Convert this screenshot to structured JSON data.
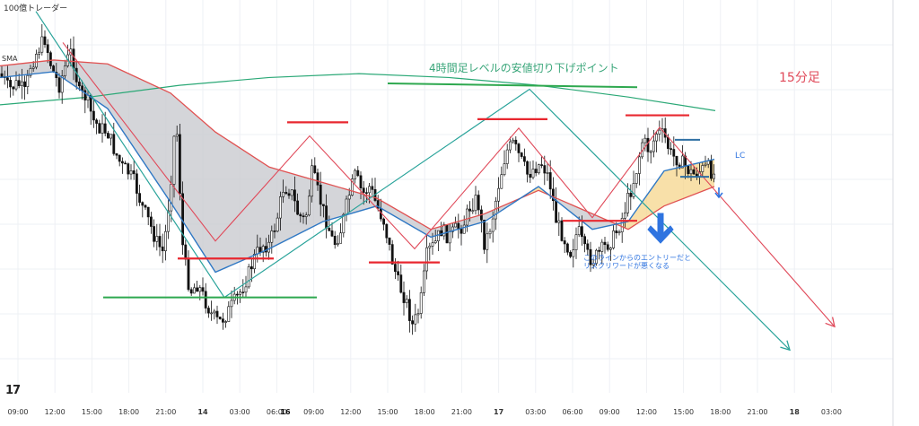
{
  "brand": "100億トレーダー",
  "small_tag": "SMA",
  "logo_text": "17",
  "annotations": {
    "level_note": "4時間足レベルの安値切り下げポイント",
    "timeframe": "15分足",
    "lc": "LC",
    "warning_line1": "このラインからのエントリーだと",
    "warning_line2": "リスクリワードが悪くなる"
  },
  "colors": {
    "background": "#ffffff",
    "grid": "#eef0f4",
    "bull_candle": "#ffffff",
    "bear_candle": "#111111",
    "ma_fast": "#2f78c4",
    "ma_slow": "#e05252",
    "ma_long": "#2aa876",
    "cloud_bear": "#c9cad0",
    "cloud_bull": "#f6d68c",
    "green_zigzag": "#29a39a",
    "red_zigzag": "#e04a5a",
    "red_level": "#e8272f",
    "green_level": "#2ea84f",
    "blue_level": "#2e6fa3",
    "arrow_blue": "#2f74e0",
    "text_green": "#3aa67a",
    "text_red": "#e04a5a",
    "text_blue": "#2f74e0"
  },
  "chart_data": {
    "type": "candlestick",
    "x_ticks": [
      "09:00",
      "12:00",
      "15:00",
      "18:00",
      "21:00",
      "14",
      "03:00",
      "06:00",
      "09:00",
      "12:00",
      "15:00",
      "18:00",
      "21:00",
      "17",
      "03:00",
      "06:00",
      "09:00",
      "12:00",
      "15:00",
      "18:00",
      "21:00",
      "18",
      "03:00"
    ],
    "bold_ticks": [
      "14",
      "17",
      "18"
    ],
    "extra_bold_tick": "16",
    "y_range": [
      1000,
      0
    ],
    "price_path": [
      [
        0,
        180
      ],
      [
        10,
        220
      ],
      [
        20,
        205
      ],
      [
        28,
        230
      ],
      [
        34,
        160
      ],
      [
        42,
        120
      ],
      [
        50,
        90
      ],
      [
        58,
        170
      ],
      [
        66,
        210
      ],
      [
        74,
        150
      ],
      [
        80,
        120
      ],
      [
        88,
        230
      ],
      [
        96,
        240
      ],
      [
        104,
        300
      ],
      [
        112,
        320
      ],
      [
        120,
        330
      ],
      [
        128,
        380
      ],
      [
        136,
        420
      ],
      [
        142,
        430
      ],
      [
        150,
        460
      ],
      [
        158,
        520
      ],
      [
        166,
        560
      ],
      [
        174,
        610
      ],
      [
        182,
        640
      ],
      [
        190,
        470
      ],
      [
        196,
        280
      ],
      [
        204,
        640
      ],
      [
        212,
        740
      ],
      [
        220,
        720
      ],
      [
        228,
        760
      ],
      [
        236,
        800
      ],
      [
        244,
        820
      ],
      [
        252,
        800
      ],
      [
        260,
        770
      ],
      [
        268,
        740
      ],
      [
        276,
        700
      ],
      [
        284,
        650
      ],
      [
        292,
        620
      ],
      [
        300,
        620
      ],
      [
        308,
        560
      ],
      [
        316,
        470
      ],
      [
        324,
        480
      ],
      [
        332,
        540
      ],
      [
        340,
        560
      ],
      [
        348,
        430
      ],
      [
        356,
        500
      ],
      [
        364,
        560
      ],
      [
        372,
        620
      ],
      [
        380,
        580
      ],
      [
        388,
        500
      ],
      [
        396,
        440
      ],
      [
        404,
        490
      ],
      [
        412,
        470
      ],
      [
        420,
        520
      ],
      [
        428,
        560
      ],
      [
        436,
        650
      ],
      [
        444,
        720
      ],
      [
        452,
        760
      ],
      [
        460,
        830
      ],
      [
        468,
        780
      ],
      [
        476,
        640
      ],
      [
        484,
        620
      ],
      [
        492,
        580
      ],
      [
        500,
        600
      ],
      [
        508,
        580
      ],
      [
        516,
        570
      ],
      [
        524,
        520
      ],
      [
        532,
        500
      ],
      [
        540,
        620
      ],
      [
        548,
        560
      ],
      [
        556,
        460
      ],
      [
        564,
        380
      ],
      [
        572,
        360
      ],
      [
        580,
        400
      ],
      [
        588,
        440
      ],
      [
        596,
        420
      ],
      [
        604,
        410
      ],
      [
        612,
        450
      ],
      [
        620,
        560
      ],
      [
        628,
        600
      ],
      [
        636,
        640
      ],
      [
        644,
        580
      ],
      [
        652,
        640
      ],
      [
        660,
        660
      ],
      [
        668,
        640
      ],
      [
        676,
        620
      ],
      [
        684,
        600
      ],
      [
        692,
        560
      ],
      [
        700,
        500
      ],
      [
        708,
        440
      ],
      [
        716,
        350
      ],
      [
        724,
        380
      ],
      [
        732,
        330
      ],
      [
        740,
        340
      ],
      [
        748,
        390
      ],
      [
        756,
        400
      ],
      [
        764,
        420
      ],
      [
        772,
        440
      ],
      [
        780,
        430
      ],
      [
        788,
        420
      ],
      [
        796,
        440
      ]
    ],
    "ma_fast": [
      [
        0,
        190
      ],
      [
        60,
        175
      ],
      [
        120,
        270
      ],
      [
        190,
        510
      ],
      [
        240,
        690
      ],
      [
        300,
        630
      ],
      [
        360,
        560
      ],
      [
        420,
        520
      ],
      [
        480,
        600
      ],
      [
        540,
        560
      ],
      [
        600,
        470
      ],
      [
        660,
        580
      ],
      [
        700,
        560
      ],
      [
        740,
        430
      ],
      [
        796,
        400
      ]
    ],
    "ma_slow": [
      [
        0,
        160
      ],
      [
        60,
        145
      ],
      [
        120,
        155
      ],
      [
        190,
        230
      ],
      [
        240,
        330
      ],
      [
        300,
        420
      ],
      [
        360,
        460
      ],
      [
        420,
        500
      ],
      [
        480,
        580
      ],
      [
        540,
        540
      ],
      [
        600,
        480
      ],
      [
        660,
        540
      ],
      [
        700,
        580
      ],
      [
        740,
        520
      ],
      [
        796,
        470
      ]
    ],
    "ma_long": [
      [
        0,
        260
      ],
      [
        100,
        240
      ],
      [
        200,
        210
      ],
      [
        300,
        190
      ],
      [
        400,
        180
      ],
      [
        500,
        190
      ],
      [
        600,
        210
      ],
      [
        700,
        240
      ],
      [
        797,
        275
      ]
    ],
    "green_zigzag": [
      [
        40,
        20
      ],
      [
        250,
        755
      ],
      [
        590,
        220
      ],
      [
        880,
        890
      ]
    ],
    "red_zigzag": [
      [
        70,
        100
      ],
      [
        240,
        610
      ],
      [
        345,
        340
      ],
      [
        462,
        630
      ],
      [
        578,
        320
      ],
      [
        660,
        550
      ],
      [
        735,
        318
      ],
      [
        930,
        830
      ]
    ],
    "red_levels": [
      [
        198,
        305,
        655
      ],
      [
        320,
        388,
        305
      ],
      [
        411,
        490,
        665
      ],
      [
        532,
        610,
        297
      ],
      [
        627,
        710,
        558
      ],
      [
        697,
        768,
        287
      ]
    ],
    "green_levels": [
      [
        115,
        353,
        755
      ],
      [
        432,
        710,
        205
      ]
    ],
    "blue_levels": [
      [
        752,
        780,
        350
      ],
      [
        758,
        790,
        445
      ]
    ]
  }
}
